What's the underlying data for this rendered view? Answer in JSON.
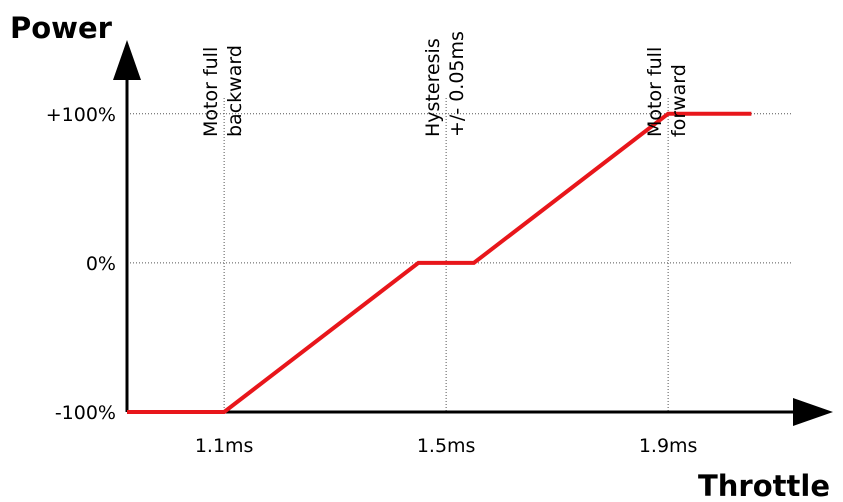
{
  "chart_data": {
    "type": "line",
    "xlabel": "Throttle",
    "ylabel": "Power",
    "x_unit": "ms",
    "xlim": [
      0.925,
      2.125
    ],
    "ylim": [
      -100,
      128
    ],
    "x_ticks": [
      {
        "value": 1.1,
        "label": "1.1ms"
      },
      {
        "value": 1.5,
        "label": "1.5ms"
      },
      {
        "value": 1.9,
        "label": "1.9ms"
      }
    ],
    "y_ticks": [
      {
        "value": 100,
        "label": "+100%"
      },
      {
        "value": 0,
        "label": "0%"
      },
      {
        "value": -100,
        "label": "-100%"
      }
    ],
    "grid": "dotted",
    "series": [
      {
        "color": "#e8161b",
        "x": [
          0.925,
          1.1,
          1.45,
          1.55,
          1.9,
          2.05
        ],
        "y": [
          -100,
          -100,
          0,
          0,
          100,
          100
        ]
      }
    ],
    "annotations": [
      {
        "x": 1.1,
        "lines": [
          "Motor full",
          "backward"
        ]
      },
      {
        "x": 1.5,
        "lines": [
          "Hysteresis",
          "+/- 0.05ms"
        ]
      },
      {
        "x": 1.9,
        "lines": [
          "Motor full",
          "forward"
        ]
      }
    ]
  }
}
